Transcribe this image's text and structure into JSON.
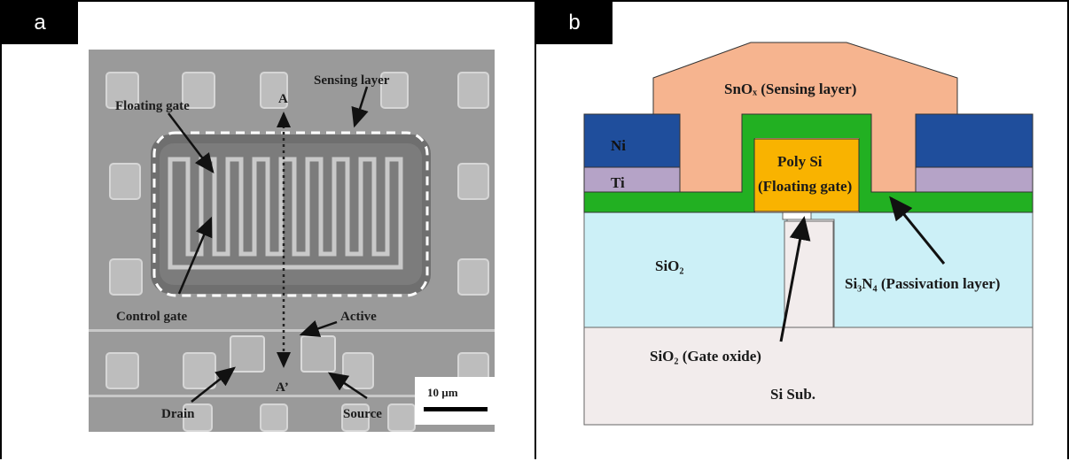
{
  "panel_a": {
    "tag": "a",
    "labels": {
      "sensing_layer": "Sensing layer",
      "floating_gate": "Floating gate",
      "control_gate": "Control gate",
      "active": "Active",
      "drain": "Drain",
      "source": "Source",
      "A": "A",
      "A_prime": "A’",
      "scale_bar": "10 µm"
    }
  },
  "panel_b": {
    "tag": "b",
    "labels": {
      "sensing_layer": "SnOₓ (Sensing layer)",
      "ni": "Ni",
      "ti": "Ti",
      "poly_si_1": "Poly Si",
      "poly_si_2": "(Floating gate)",
      "sio2": "SiO₂",
      "passivation": "Si₃N₄ (Passivation layer)",
      "gate_oxide": "SiO₂ (Gate oxide)",
      "substrate": "Si Sub."
    },
    "colors": {
      "sensing": "#f6b48f",
      "ni": "#1f4e9c",
      "ti": "#b5a3c7",
      "passivation": "#22b022",
      "poly_si": "#f9b300",
      "sio2": "#ccf0f7",
      "substrate": "#f2ecec"
    }
  }
}
